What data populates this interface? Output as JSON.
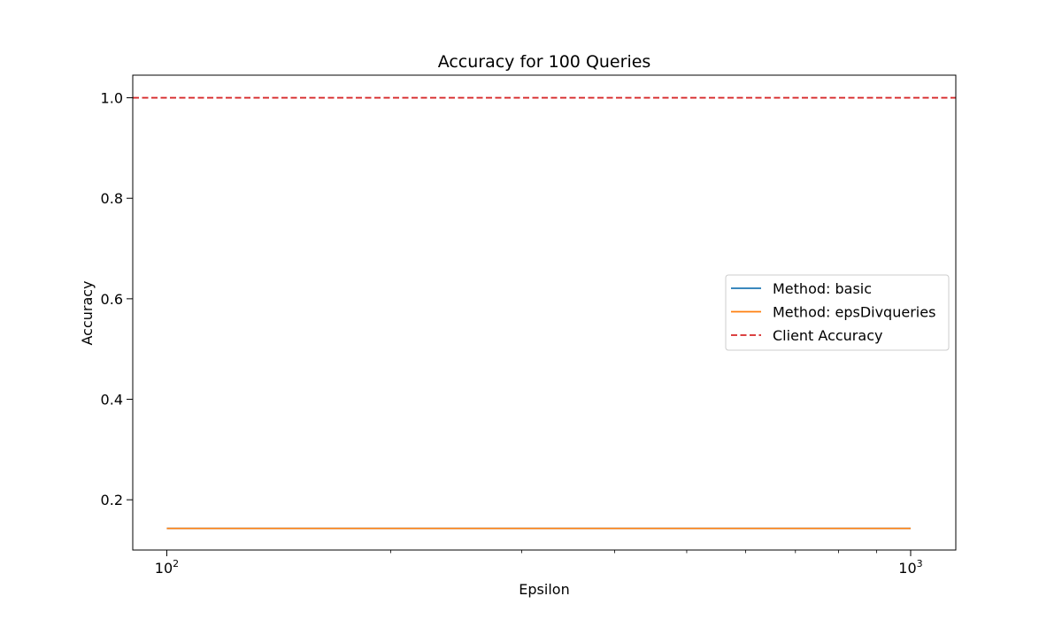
{
  "chart_data": {
    "type": "line",
    "title": "Accuracy for 100 Queries",
    "xlabel": "Epsilon",
    "ylabel": "Accuracy",
    "xscale": "log",
    "xlim": [
      90,
      1150
    ],
    "ylim": [
      0.1,
      1.045
    ],
    "x_ticks": [
      {
        "value": 100,
        "base": "10",
        "exp": "2"
      },
      {
        "value": 1000,
        "base": "10",
        "exp": "3"
      }
    ],
    "y_ticks": [
      {
        "value": 0.2,
        "label": "0.2"
      },
      {
        "value": 0.4,
        "label": "0.4"
      },
      {
        "value": 0.6,
        "label": "0.6"
      },
      {
        "value": 0.8,
        "label": "0.8"
      },
      {
        "value": 1.0,
        "label": "1.0"
      }
    ],
    "series": [
      {
        "name": "Method: basic",
        "color": "#1f77b4",
        "style": "solid",
        "x": [
          100,
          1000
        ],
        "y": [
          0.143,
          0.143
        ]
      },
      {
        "name": "Method: epsDivqueries",
        "color": "#ff7f0e",
        "style": "solid",
        "x": [
          100,
          1000
        ],
        "y": [
          0.143,
          0.143
        ]
      }
    ],
    "reference_line": {
      "name": "Client Accuracy",
      "color": "#d62728",
      "style": "dashed",
      "y": 1.0
    },
    "legend": {
      "placement": "center-right",
      "entries": [
        {
          "label": "Method: basic",
          "color": "#1f77b4",
          "style": "solid"
        },
        {
          "label": "Method: epsDivqueries",
          "color": "#ff7f0e",
          "style": "solid"
        },
        {
          "label": "Client Accuracy",
          "color": "#d62728",
          "style": "dashed"
        }
      ]
    },
    "grid": false
  }
}
